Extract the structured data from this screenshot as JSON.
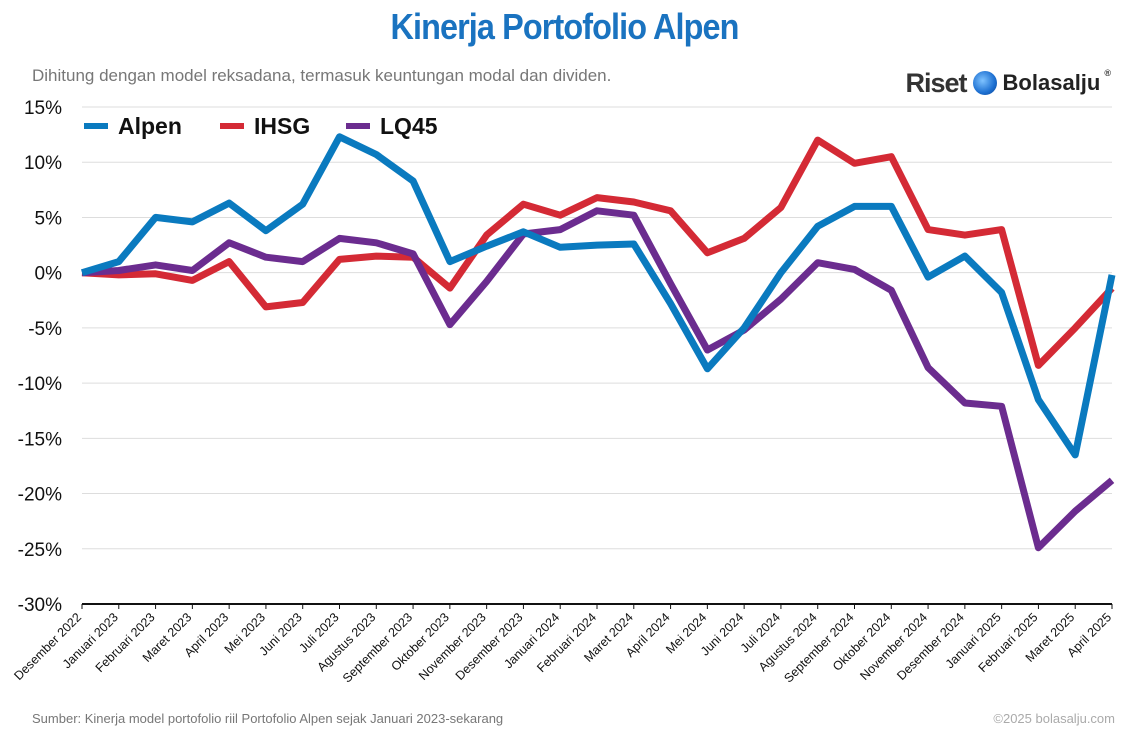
{
  "header": {
    "title": "Kinerja Portofolio Alpen",
    "subtitle": "Dihitung dengan model reksadana, termasuk keuntungan modal dan dividen."
  },
  "brand": {
    "part1": "Riset",
    "part2": "Bolasalju",
    "mark": "®",
    "icon": "snowball-icon"
  },
  "footer": {
    "source": "Sumber: Kinerja model portofolio riil Portofolio Alpen sejak Januari 2023-sekarang",
    "copyright": "©2025 bolasalju.com"
  },
  "colors": {
    "Alpen": "#0a7abf",
    "IHSG": "#d42a35",
    "LQ45": "#6b2c8f",
    "title": "#1a73c0",
    "grid": "#dddddd"
  },
  "chart_data": {
    "type": "line",
    "title": "Kinerja Portofolio Alpen",
    "xlabel": "",
    "ylabel": "",
    "ylim": [
      -30,
      15
    ],
    "yticks": [
      15,
      10,
      5,
      0,
      -5,
      -10,
      -15,
      -20,
      -25,
      -30
    ],
    "ytick_labels": [
      "15%",
      "10%",
      "5%",
      "0%",
      "-5%",
      "-10%",
      "-15%",
      "-20%",
      "-25%",
      "-30%"
    ],
    "grid": true,
    "legend_position": "top-left",
    "categories": [
      "Desember 2022",
      "Januari 2023",
      "Februari 2023",
      "Maret 2023",
      "April 2023",
      "Mei 2023",
      "Juni 2023",
      "Juli 2023",
      "Agustus 2023",
      "September 2023",
      "Oktober 2023",
      "November 2023",
      "Desember 2023",
      "Januari 2024",
      "Februari 2024",
      "Maret 2024",
      "April 2024",
      "Mei 2024",
      "Juni 2024",
      "Juli 2024",
      "Agustus 2024",
      "September 2024",
      "Oktober 2024",
      "November 2024",
      "Desember 2024",
      "Januari 2025",
      "Februari 2025",
      "Maret 2025",
      "April 2025"
    ],
    "series": [
      {
        "name": "Alpen",
        "values": [
          0,
          1,
          5,
          4.6,
          6.3,
          3.8,
          6.2,
          12.3,
          10.7,
          8.3,
          1,
          2.4,
          3.7,
          2.3,
          2.5,
          2.6,
          -2.8,
          -8.7,
          -5,
          0,
          4.2,
          6,
          6,
          -0.4,
          1.5,
          -1.8,
          -11.5,
          -16.5,
          -0.2
        ]
      },
      {
        "name": "IHSG",
        "values": [
          0,
          -0.2,
          -0.1,
          -0.7,
          1,
          -3.1,
          -2.7,
          1.2,
          1.5,
          1.4,
          -1.4,
          3.4,
          6.2,
          5.2,
          6.8,
          6.4,
          5.6,
          1.8,
          3.1,
          5.9,
          12,
          9.9,
          10.5,
          3.9,
          3.4,
          3.9,
          -8.4,
          -5,
          -1.4
        ]
      },
      {
        "name": "LQ45",
        "values": [
          0,
          0.2,
          0.7,
          0.2,
          2.7,
          1.4,
          1,
          3.1,
          2.7,
          1.7,
          -4.7,
          -0.8,
          3.5,
          3.9,
          5.6,
          5.2,
          -1,
          -7,
          -5.2,
          -2.4,
          0.9,
          0.3,
          -1.6,
          -8.6,
          -11.8,
          -12.1,
          -24.9,
          -21.6,
          -18.8
        ]
      }
    ]
  }
}
